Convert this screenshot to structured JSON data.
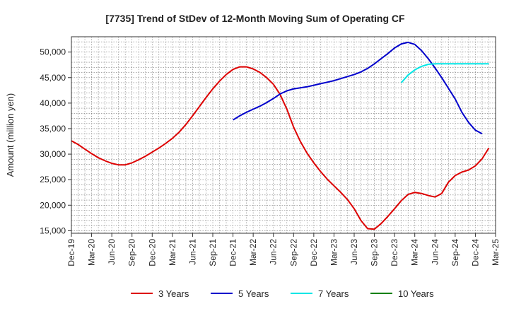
{
  "chart_data": {
    "type": "line",
    "title": "[7735]  Trend of StDev of 12-Month Moving Sum of Operating CF",
    "xlabel": "",
    "ylabel": "Amount (million yen)",
    "ylim": [
      14500,
      53000
    ],
    "yticks": [
      15000,
      20000,
      25000,
      30000,
      35000,
      40000,
      45000,
      50000
    ],
    "ytick_labels": [
      "15,000",
      "20,000",
      "25,000",
      "30,000",
      "35,000",
      "40,000",
      "45,000",
      "50,000"
    ],
    "x_start": "Dec-19",
    "x_months_total": 63,
    "xticks": [
      "Dec-19",
      "Mar-20",
      "Jun-20",
      "Sep-20",
      "Dec-20",
      "Mar-21",
      "Jun-21",
      "Sep-21",
      "Dec-21",
      "Mar-22",
      "Jun-22",
      "Sep-22",
      "Dec-22",
      "Mar-23",
      "Jun-23",
      "Sep-23",
      "Dec-23",
      "Mar-24",
      "Jun-24",
      "Sep-24",
      "Dec-24",
      "Mar-25"
    ],
    "grid": true,
    "legend_position": "bottom",
    "series": [
      {
        "name": "3 Years",
        "color": "#dd0000",
        "start_index": 0,
        "values": [
          32600,
          31900,
          31000,
          30100,
          29300,
          28700,
          28200,
          27900,
          27900,
          28300,
          28900,
          29600,
          30400,
          31200,
          32100,
          33100,
          34300,
          35800,
          37500,
          39300,
          41100,
          42800,
          44300,
          45600,
          46600,
          47100,
          47100,
          46700,
          46000,
          45000,
          43700,
          41700,
          38800,
          35300,
          32500,
          30200,
          28300,
          26600,
          25100,
          23800,
          22500,
          21100,
          19300,
          17000,
          15400,
          15300,
          16400,
          17800,
          19300,
          20900,
          22100,
          22500,
          22300,
          21900,
          21600,
          22300,
          24500,
          25800,
          26500,
          26900,
          27700,
          29100,
          31200
        ]
      },
      {
        "name": "5 Years",
        "color": "#0000cc",
        "start_index": 24,
        "values": [
          36700,
          37500,
          38200,
          38800,
          39400,
          40100,
          40900,
          41800,
          42400,
          42800,
          43000,
          43200,
          43500,
          43800,
          44100,
          44400,
          44800,
          45200,
          45600,
          46100,
          46800,
          47700,
          48700,
          49700,
          50800,
          51600,
          51900,
          51500,
          50300,
          48700,
          46900,
          45000,
          42900,
          40800,
          38200,
          36200,
          34700,
          34000
        ]
      },
      {
        "name": "7 Years",
        "color": "#00e5e5",
        "start_index": 49,
        "values": [
          44000,
          45500,
          46500,
          47200,
          47600,
          47700,
          47700,
          47700,
          47700,
          47700,
          47700,
          47700,
          47700,
          47700
        ]
      },
      {
        "name": "10 Years",
        "color": "#008000",
        "start_index": 0,
        "values": []
      }
    ]
  }
}
